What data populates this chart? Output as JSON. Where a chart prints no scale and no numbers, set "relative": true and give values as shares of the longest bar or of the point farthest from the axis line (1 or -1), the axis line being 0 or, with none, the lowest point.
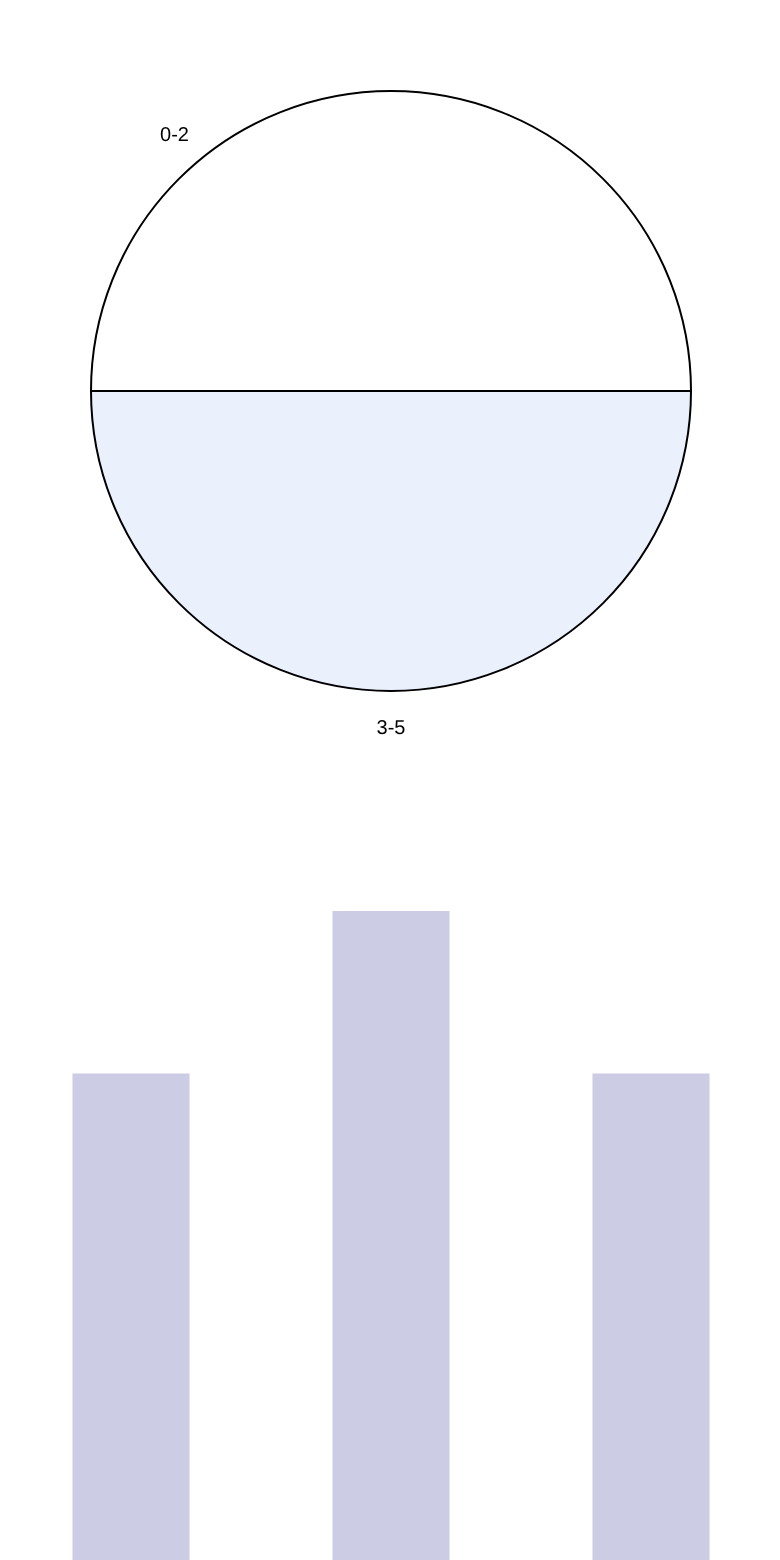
{
  "chart_data": [
    {
      "type": "pie",
      "categories": [
        "0-2",
        "3-5"
      ],
      "values": [
        50,
        50
      ],
      "colors": [
        "#ffffff",
        "#eaf0fc"
      ]
    },
    {
      "type": "bar",
      "relative": true,
      "categories": [
        null,
        null,
        null
      ],
      "values": [
        0.75,
        1,
        0.75
      ],
      "color": "#ccccE4"
    }
  ]
}
